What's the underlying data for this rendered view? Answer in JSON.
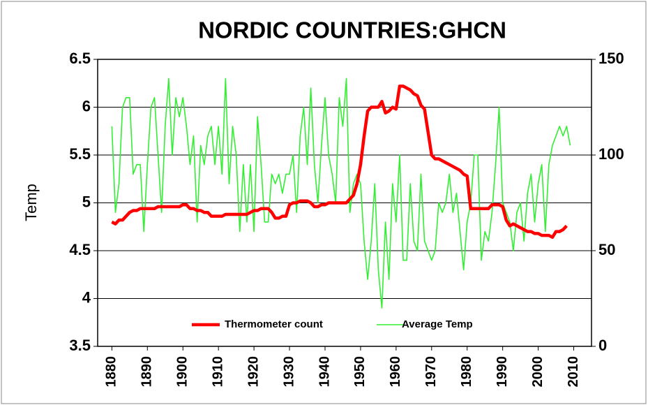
{
  "chart_data": {
    "type": "line",
    "title": "NORDIC COUNTRIES:GHCN",
    "ylabel": "Temp",
    "x": [
      1880,
      1881,
      1882,
      1883,
      1884,
      1885,
      1886,
      1887,
      1888,
      1889,
      1890,
      1891,
      1892,
      1893,
      1894,
      1895,
      1896,
      1897,
      1898,
      1899,
      1900,
      1901,
      1902,
      1903,
      1904,
      1905,
      1906,
      1907,
      1908,
      1909,
      1910,
      1911,
      1912,
      1913,
      1914,
      1915,
      1916,
      1917,
      1918,
      1919,
      1920,
      1921,
      1922,
      1923,
      1924,
      1925,
      1926,
      1927,
      1928,
      1929,
      1930,
      1931,
      1932,
      1933,
      1934,
      1935,
      1936,
      1937,
      1938,
      1939,
      1940,
      1941,
      1942,
      1943,
      1944,
      1945,
      1946,
      1947,
      1948,
      1949,
      1950,
      1951,
      1952,
      1953,
      1954,
      1955,
      1956,
      1957,
      1958,
      1959,
      1960,
      1961,
      1962,
      1963,
      1964,
      1965,
      1966,
      1967,
      1968,
      1969,
      1970,
      1971,
      1972,
      1973,
      1974,
      1975,
      1976,
      1977,
      1978,
      1979,
      1980,
      1981,
      1982,
      1983,
      1984,
      1985,
      1986,
      1987,
      1988,
      1989,
      1990,
      1991,
      1992,
      1993,
      1994,
      1995,
      1996,
      1997,
      1998,
      1999,
      2000,
      2001,
      2002,
      2003,
      2004,
      2005,
      2006,
      2007,
      2008,
      2009
    ],
    "series": [
      {
        "name": "Thermometer count",
        "color": "#ff0000",
        "axis": "y2",
        "values": [
          65,
          64,
          66,
          66,
          68,
          70,
          71,
          71,
          72,
          72,
          72,
          72,
          72,
          73,
          73,
          73,
          73,
          73,
          73,
          73,
          74,
          74,
          72,
          72,
          71,
          71,
          70,
          70,
          68,
          68,
          68,
          68,
          69,
          69,
          69,
          69,
          69,
          69,
          69,
          70,
          71,
          71,
          72,
          72,
          72,
          70,
          67,
          67,
          68,
          68,
          74,
          75,
          75,
          76,
          76,
          76,
          75,
          73,
          73,
          74,
          74,
          75,
          75,
          75,
          75,
          75,
          75,
          77,
          79,
          85,
          95,
          110,
          123,
          125,
          125,
          125,
          128,
          122,
          123,
          125,
          124,
          136,
          136,
          135,
          134,
          132,
          131,
          126,
          124,
          112,
          100,
          98,
          98,
          97,
          96,
          95,
          94,
          93,
          92,
          90,
          89,
          72,
          72,
          72,
          72,
          72,
          72,
          74,
          74,
          74,
          73,
          66,
          63,
          64,
          63,
          62,
          61,
          60,
          60,
          59,
          59,
          58,
          58,
          58,
          57,
          60,
          60,
          61,
          63,
          null
        ]
      },
      {
        "name": "Average Temp",
        "color": "#33ee33",
        "values": [
          5.8,
          4.9,
          5.2,
          6.0,
          6.1,
          6.1,
          5.3,
          5.4,
          5.4,
          4.7,
          5.4,
          6.0,
          6.1,
          5.5,
          4.9,
          5.8,
          6.3,
          5.5,
          6.1,
          5.9,
          6.1,
          5.8,
          5.4,
          5.7,
          4.8,
          5.6,
          5.4,
          5.7,
          5.8,
          5.4,
          5.8,
          5.3,
          6.3,
          5.2,
          5.8,
          5.5,
          4.7,
          5.4,
          4.8,
          5.4,
          4.7,
          5.9,
          5.4,
          4.8,
          4.8,
          5.3,
          5.2,
          5.3,
          5.1,
          5.3,
          5.3,
          5.5,
          4.9,
          5.7,
          6.0,
          5.4,
          6.2,
          5.4,
          5.0,
          5.6,
          6.1,
          5.5,
          5.3,
          5.0,
          6.1,
          5.8,
          6.3,
          4.9,
          5.2,
          5.3,
          5.2,
          4.6,
          4.2,
          4.6,
          5.2,
          4.3,
          3.9,
          4.8,
          4.2,
          5.2,
          4.8,
          5.5,
          4.4,
          4.4,
          5.2,
          4.6,
          4.5,
          5.3,
          4.6,
          4.5,
          4.4,
          4.5,
          5.0,
          4.9,
          5.0,
          5.3,
          4.9,
          5.1,
          4.7,
          4.3,
          4.8,
          5.0,
          5.5,
          5.5,
          4.4,
          4.7,
          4.6,
          4.9,
          5.4,
          6.0,
          5.0,
          4.9,
          4.8,
          4.5,
          4.9,
          5.0,
          4.6,
          5.1,
          5.3,
          4.8,
          5.2,
          5.4,
          4.7,
          5.4,
          5.6,
          5.7,
          5.8,
          5.7,
          5.8,
          5.6
        ]
      }
    ],
    "xlim": [
      1876,
      2015
    ],
    "xticks": [
      1880,
      1890,
      1900,
      1910,
      1920,
      1930,
      1940,
      1950,
      1960,
      1970,
      1980,
      1990,
      2000,
      2010
    ],
    "ylim": [
      3.5,
      6.5
    ],
    "yticks": [
      3.5,
      4,
      4.5,
      5,
      5.5,
      6,
      6.5
    ],
    "y2lim": [
      0,
      150
    ],
    "y2ticks": [
      0,
      50,
      100,
      150
    ],
    "grid": true,
    "legend": "bottom"
  }
}
